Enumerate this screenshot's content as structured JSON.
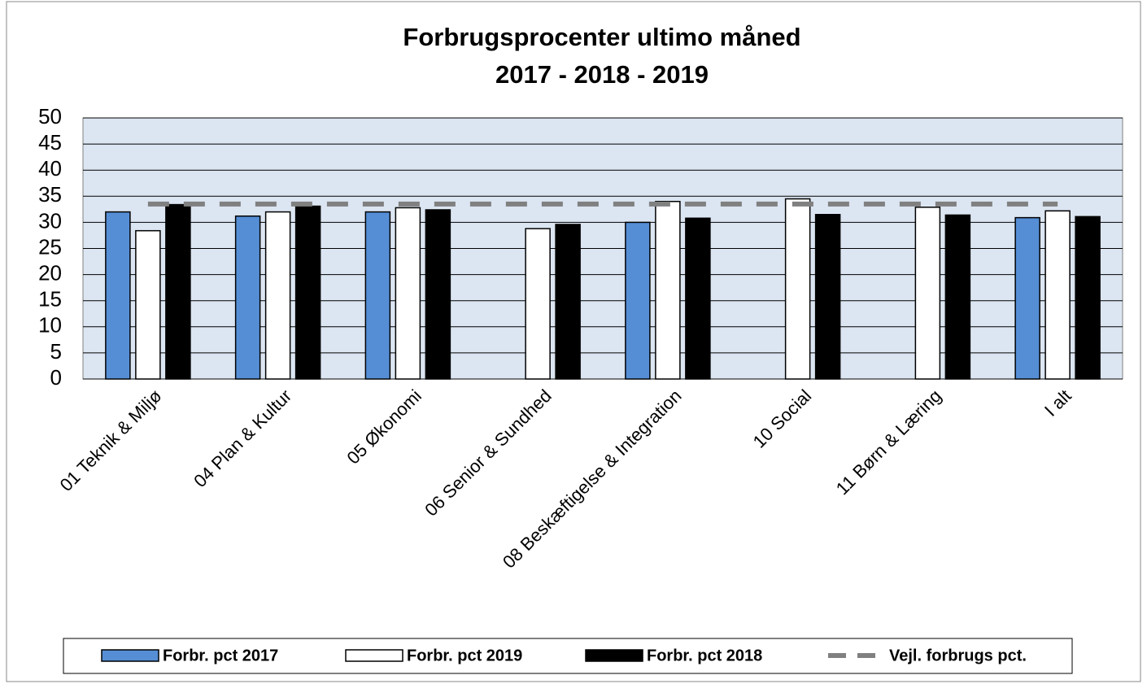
{
  "chart_data": {
    "type": "bar",
    "title": "Forbrugsprocenter ultimo måned",
    "subtitle": "2017 - 2018 - 2019",
    "categories": [
      "01 Teknik & Miljø",
      "04 Plan & Kultur",
      "05 Økonomi",
      "06 Senior & Sundhed",
      "08 Beskæftigelse & Integration",
      "10 Social",
      "11 Børn & Læring",
      "I alt"
    ],
    "series": [
      {
        "name": "Forbr. pct 2017",
        "color": "#558ed5",
        "values": [
          32,
          31.2,
          32,
          null,
          30,
          null,
          null,
          30.9
        ]
      },
      {
        "name": "Forbr. pct 2019",
        "color": "#ffffff",
        "values": [
          28.4,
          32,
          32.8,
          28.8,
          34,
          34.5,
          32.9,
          32.2
        ]
      },
      {
        "name": "Forbr. pct 2018",
        "color": "#000000",
        "values": [
          33.4,
          33.1,
          32.4,
          29.6,
          30.8,
          31.5,
          31.4,
          31.1
        ]
      },
      {
        "name": "Vejl. forbrugs pct.",
        "color": "#808080",
        "type": "line",
        "values": [
          33.5,
          33.5,
          33.5,
          33.5,
          33.5,
          33.5,
          33.5,
          33.5
        ]
      }
    ],
    "ylim": [
      0,
      50
    ],
    "yticks": [
      0,
      5,
      10,
      15,
      20,
      25,
      30,
      35,
      40,
      45,
      50
    ],
    "grid": true,
    "legend": "bottom"
  }
}
